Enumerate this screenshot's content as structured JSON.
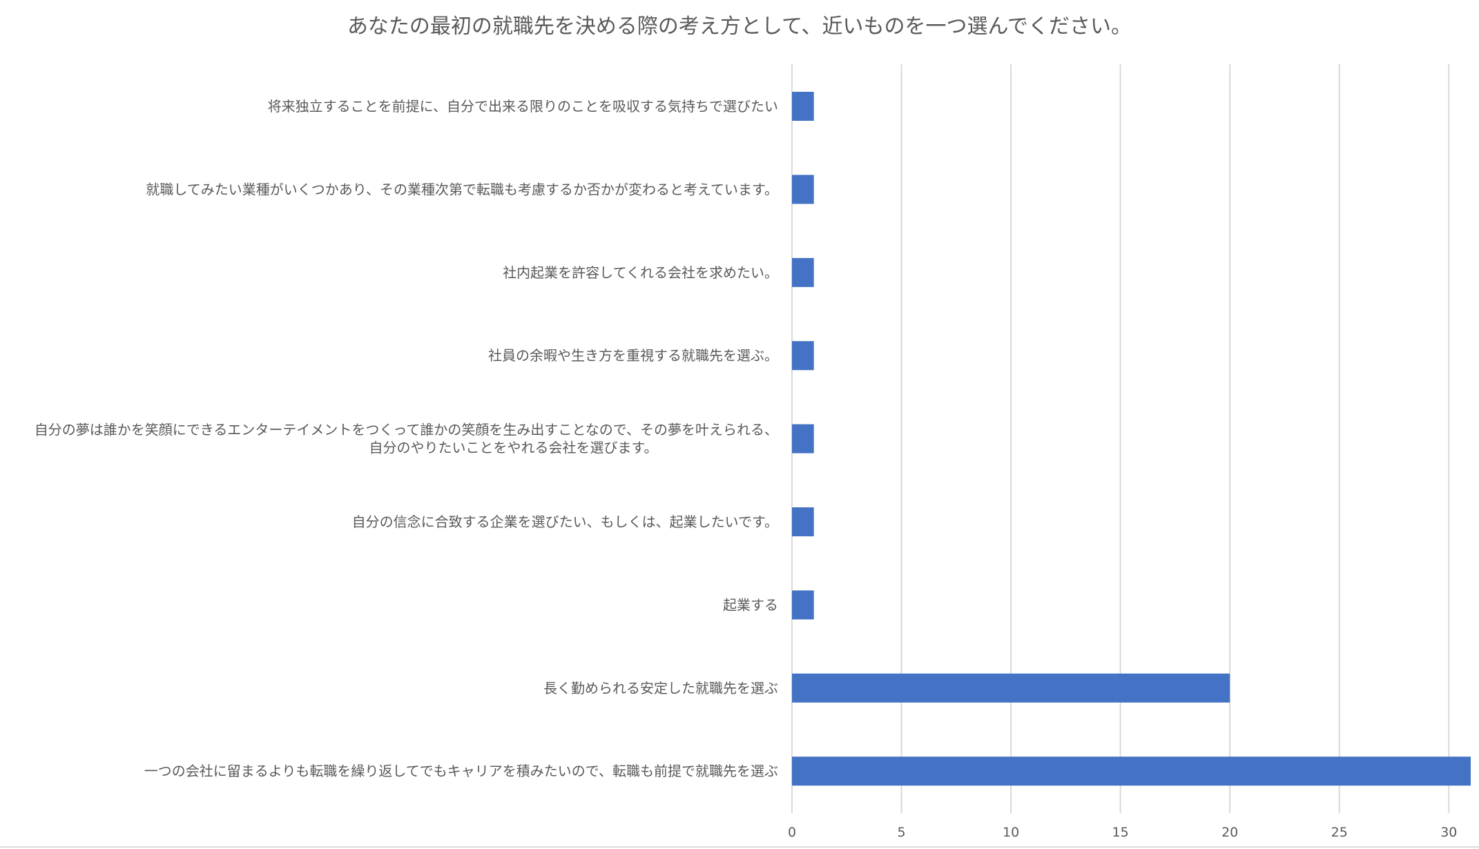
{
  "chart_data": {
    "type": "bar",
    "orientation": "horizontal",
    "title": "あなたの最初の就職先を決める際の考え方として、近いものを一つ選んでください。",
    "categories": [
      [
        "将来独立することを前提に、自分で出来る限りのことを吸収する気持ちで選びたい"
      ],
      [
        "就職してみたい業種がいくつかあり、その業種次第で転職も考慮するか否かが変わると考えています。"
      ],
      [
        "社内起業を許容してくれる会社を求めたい。"
      ],
      [
        "社員の余暇や生き方を重視する就職先を選ぶ。"
      ],
      [
        "自分の夢は誰かを笑顔にできるエンターテイメントをつくって誰かの笑顔を生み出すことなので、その夢を叶えられる、",
        "自分のやりたいことをやれる会社を選びます。"
      ],
      [
        "自分の信念に合致する企業を選びたい、もしくは、起業したいです。"
      ],
      [
        "起業する"
      ],
      [
        "長く勤められる安定した就職先を選ぶ"
      ],
      [
        "一つの会社に留まるよりも転職を繰り返してでもキャリアを積みたいので、転職も前提で就職先を選ぶ"
      ]
    ],
    "values": [
      1,
      1,
      1,
      1,
      1,
      1,
      1,
      20,
      31
    ],
    "xlim": [
      0,
      31
    ],
    "xticks": [
      0,
      5,
      10,
      15,
      20,
      25,
      30
    ],
    "xlabel": "",
    "ylabel": "",
    "grid": "vertical",
    "legend": "none",
    "colors": {
      "bar": "#4472c4",
      "grid": "#d9d9d9",
      "text": "#595959",
      "background": "#ffffff"
    }
  }
}
